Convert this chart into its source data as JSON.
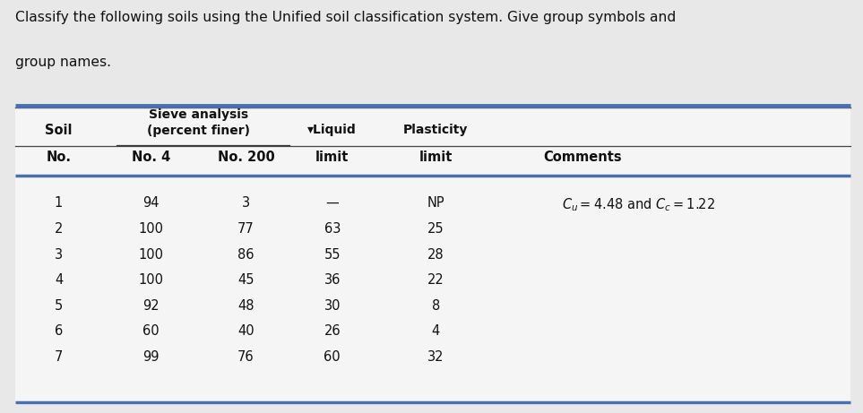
{
  "title_line1": "Classify the following soils using the Unified soil classification system. Give group symbols and",
  "title_line2": "group names.",
  "rows": [
    [
      "1",
      "94",
      "3",
      "—",
      "NP",
      "$C_u = 4.48$ and $C_c = 1.22$"
    ],
    [
      "2",
      "100",
      "77",
      "63",
      "25",
      ""
    ],
    [
      "3",
      "100",
      "86",
      "55",
      "28",
      ""
    ],
    [
      "4",
      "100",
      "45",
      "36",
      "22",
      ""
    ],
    [
      "5",
      "92",
      "48",
      "30",
      "8",
      ""
    ],
    [
      "6",
      "60",
      "40",
      "26",
      "4",
      ""
    ],
    [
      "7",
      "99",
      "76",
      "60",
      "32",
      ""
    ]
  ],
  "bg_color": "#e8e8e8",
  "table_bg": "#f5f5f5",
  "blue_line_color": "#4a6faf",
  "dark_line_color": "#555555"
}
